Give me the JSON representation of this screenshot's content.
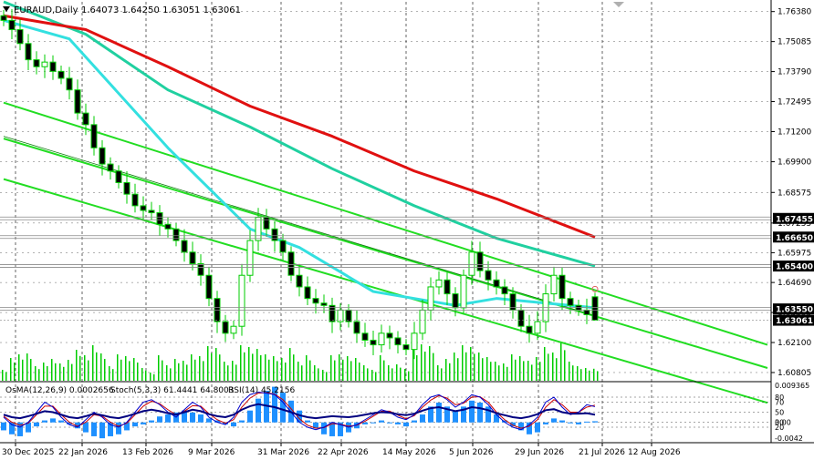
{
  "header": {
    "symbol_timeframe": "EURAUD,Daily",
    "ohlc": "1.64073 1.64250 1.63051 1.63061"
  },
  "indicator_header": {
    "osma": "OsMA(12,26,9) 0.0002656",
    "stoch": "Stoch(5,3,3) 61.4441 64.8003",
    "rsi": "RSI(14) 45.2156"
  },
  "colors": {
    "background": "#ffffff",
    "grid": "#000000",
    "candle": "#00cc00",
    "ma_fast": "#33e0e0",
    "ma_mid": "#20d0a0",
    "ma_slow": "#e01010",
    "channel": "#22dd22",
    "current_price_bg": "#000000",
    "level_bg": "#000000",
    "stoch_main": "#0000cc",
    "stoch_signal": "#cc0000",
    "osma": "#1e90ff",
    "rsi": "#000080"
  },
  "chart_data": {
    "type": "candlestick",
    "symbol": "EURAUD",
    "timeframe": "Daily",
    "price_axis": {
      "range": [
        1.6045,
        1.768
      ],
      "tick_labels": [
        "1.76380",
        "1.75085",
        "1.73790",
        "1.72495",
        "1.71200",
        "1.69900",
        "1.68575",
        "1.67255",
        "1.65975",
        "1.64690",
        "1.63395",
        "1.62100",
        "1.60805"
      ],
      "tick_values": [
        1.7638,
        1.75085,
        1.7379,
        1.72495,
        1.712,
        1.699,
        1.68575,
        1.67255,
        1.65975,
        1.6469,
        1.63395,
        1.621,
        1.60805
      ]
    },
    "highlighted_levels": [
      {
        "label": "1.67455",
        "value": 1.67455
      },
      {
        "label": "1.66650",
        "value": 1.6665
      },
      {
        "label": "1.65400",
        "value": 1.654
      },
      {
        "label": "1.63550",
        "value": 1.6355
      },
      {
        "label": "1.63061",
        "value": 1.63061,
        "current": true
      }
    ],
    "time_axis": {
      "labels": [
        "30 Dec 2025",
        "22 Jan 2026",
        "13 Feb 2026",
        "9 Mar 2026",
        "31 Mar 2026",
        "22 Apr 2026",
        "14 May 2026",
        "5 Jun 2026",
        "29 Jun 2026",
        "21 Jul 2026",
        "12 Aug 2026"
      ]
    },
    "close_path": [
      1.76,
      1.756,
      1.75,
      1.743,
      1.74,
      1.742,
      1.738,
      1.735,
      1.73,
      1.72,
      1.715,
      1.705,
      1.698,
      1.695,
      1.69,
      1.685,
      1.68,
      1.678,
      1.677,
      1.672,
      1.67,
      1.665,
      1.66,
      1.655,
      1.65,
      1.64,
      1.63,
      1.625,
      1.628,
      1.65,
      1.665,
      1.675,
      1.67,
      1.665,
      1.66,
      1.65,
      1.645,
      1.64,
      1.638,
      1.637,
      1.63,
      1.635,
      1.63,
      1.625,
      1.622,
      1.62,
      1.625,
      1.623,
      1.62,
      1.618,
      1.625,
      1.635,
      1.645,
      1.648,
      1.642,
      1.636,
      1.65,
      1.66,
      1.652,
      1.648,
      1.645,
      1.642,
      1.635,
      1.628,
      1.625,
      1.63,
      1.642,
      1.65,
      1.64,
      1.637,
      1.635,
      1.633,
      1.6306
    ],
    "last_candle": {
      "open": 1.64073,
      "high": 1.6425,
      "low": 1.63051,
      "close": 1.63061
    },
    "lines": [
      {
        "role": "fast moving average",
        "color": "#33e0e0",
        "points": [
          [
            0,
            1.76
          ],
          [
            8,
            1.752
          ],
          [
            20,
            1.705
          ],
          [
            30,
            1.67
          ],
          [
            36,
            1.662
          ],
          [
            45,
            1.643
          ],
          [
            55,
            1.637
          ],
          [
            60,
            1.64
          ],
          [
            66,
            1.638
          ],
          [
            72,
            1.636
          ]
        ]
      },
      {
        "role": "medium moving average",
        "color": "#20d0a0",
        "points": [
          [
            0,
            1.768
          ],
          [
            10,
            1.754
          ],
          [
            20,
            1.73
          ],
          [
            30,
            1.714
          ],
          [
            40,
            1.696
          ],
          [
            50,
            1.68
          ],
          [
            60,
            1.666
          ],
          [
            72,
            1.654
          ]
        ]
      },
      {
        "role": "slow moving average",
        "color": "#e01010",
        "points": [
          [
            0,
            1.762
          ],
          [
            10,
            1.756
          ],
          [
            20,
            1.74
          ],
          [
            30,
            1.723
          ],
          [
            40,
            1.71
          ],
          [
            50,
            1.695
          ],
          [
            60,
            1.683
          ],
          [
            72,
            1.6665
          ]
        ]
      }
    ],
    "channel_lines": [
      {
        "role": "upper channel",
        "from": [
          0,
          1.7245
        ],
        "to": [
          93,
          1.62
        ]
      },
      {
        "role": "middle channel",
        "from": [
          0,
          1.709
        ],
        "to": [
          93,
          1.61
        ]
      },
      {
        "role": "lower channel",
        "from": [
          0,
          1.6915
        ],
        "to": [
          93,
          1.595
        ]
      },
      {
        "role": "thin trendline",
        "from": [
          0,
          1.71
        ],
        "to": [
          93,
          1.61
        ],
        "dashed_from_bar": 72
      }
    ],
    "volume": "shown as histogram under price bars",
    "sub_window": {
      "indicators": [
        "OsMA(12,26,9)",
        "Stoch(5,3,3)",
        "RSI(14)"
      ],
      "axis_labels": [
        "0.009365",
        "80",
        "70",
        "50",
        "30",
        "20",
        "0.00",
        "-0.0042"
      ],
      "osma": [
        -0.002,
        -0.003,
        -0.0035,
        -0.0025,
        -0.001,
        0.0005,
        0.001,
        0.0005,
        -0.0005,
        -0.0015,
        -0.0025,
        -0.0035,
        -0.004,
        -0.0035,
        -0.003,
        -0.002,
        -0.001,
        -0.0005,
        0.0005,
        0.0015,
        0.002,
        0.0025,
        0.003,
        0.0025,
        0.002,
        0.001,
        0.0005,
        -0.0005,
        -0.001,
        0.0005,
        0.003,
        0.006,
        0.008,
        0.009,
        0.0075,
        0.0055,
        0.003,
        0.0005,
        -0.0015,
        -0.003,
        -0.0035,
        -0.0035,
        -0.0025,
        -0.0015,
        -0.0005,
        0.0,
        0.0005,
        0.0,
        -0.0005,
        -0.001,
        0.0005,
        0.002,
        0.004,
        0.005,
        0.004,
        0.003,
        0.004,
        0.0055,
        0.005,
        0.004,
        0.002,
        0.0005,
        -0.001,
        -0.002,
        -0.003,
        -0.0025,
        -0.0005,
        0.001,
        0.0005,
        0.0,
        -0.0005,
        0.0002,
        0.0003
      ],
      "stoch_main": [
        40,
        25,
        20,
        30,
        50,
        70,
        60,
        40,
        25,
        20,
        35,
        50,
        40,
        25,
        20,
        30,
        50,
        70,
        75,
        65,
        50,
        40,
        55,
        70,
        60,
        40,
        30,
        25,
        40,
        70,
        85,
        90,
        88,
        85,
        70,
        50,
        30,
        20,
        15,
        20,
        30,
        25,
        20,
        25,
        35,
        45,
        55,
        50,
        40,
        35,
        45,
        65,
        80,
        85,
        75,
        60,
        70,
        85,
        80,
        65,
        45,
        30,
        20,
        15,
        25,
        40,
        70,
        80,
        60,
        45,
        50,
        65,
        61
      ],
      "stoch_signal": [
        42,
        30,
        24,
        28,
        45,
        62,
        62,
        45,
        30,
        22,
        30,
        45,
        42,
        30,
        22,
        28,
        45,
        62,
        72,
        67,
        55,
        45,
        52,
        63,
        62,
        47,
        35,
        28,
        35,
        60,
        78,
        88,
        89,
        86,
        75,
        57,
        37,
        24,
        18,
        19,
        27,
        26,
        22,
        24,
        32,
        42,
        52,
        52,
        44,
        37,
        43,
        60,
        74,
        83,
        78,
        65,
        68,
        80,
        81,
        70,
        50,
        35,
        24,
        18,
        22,
        35,
        60,
        75,
        65,
        50,
        50,
        60,
        64
      ],
      "rsi": [
        45,
        40,
        38,
        42,
        47,
        52,
        50,
        45,
        40,
        38,
        42,
        47,
        44,
        40,
        38,
        42,
        47,
        52,
        55,
        52,
        48,
        45,
        50,
        55,
        52,
        46,
        42,
        40,
        45,
        55,
        62,
        66,
        63,
        60,
        55,
        50,
        44,
        40,
        38,
        40,
        42,
        41,
        40,
        42,
        45,
        48,
        50,
        49,
        46,
        44,
        47,
        53,
        58,
        60,
        56,
        52,
        55,
        60,
        58,
        54,
        48,
        44,
        40,
        38,
        41,
        46,
        54,
        56,
        50,
        47,
        47,
        48,
        45
      ]
    }
  }
}
